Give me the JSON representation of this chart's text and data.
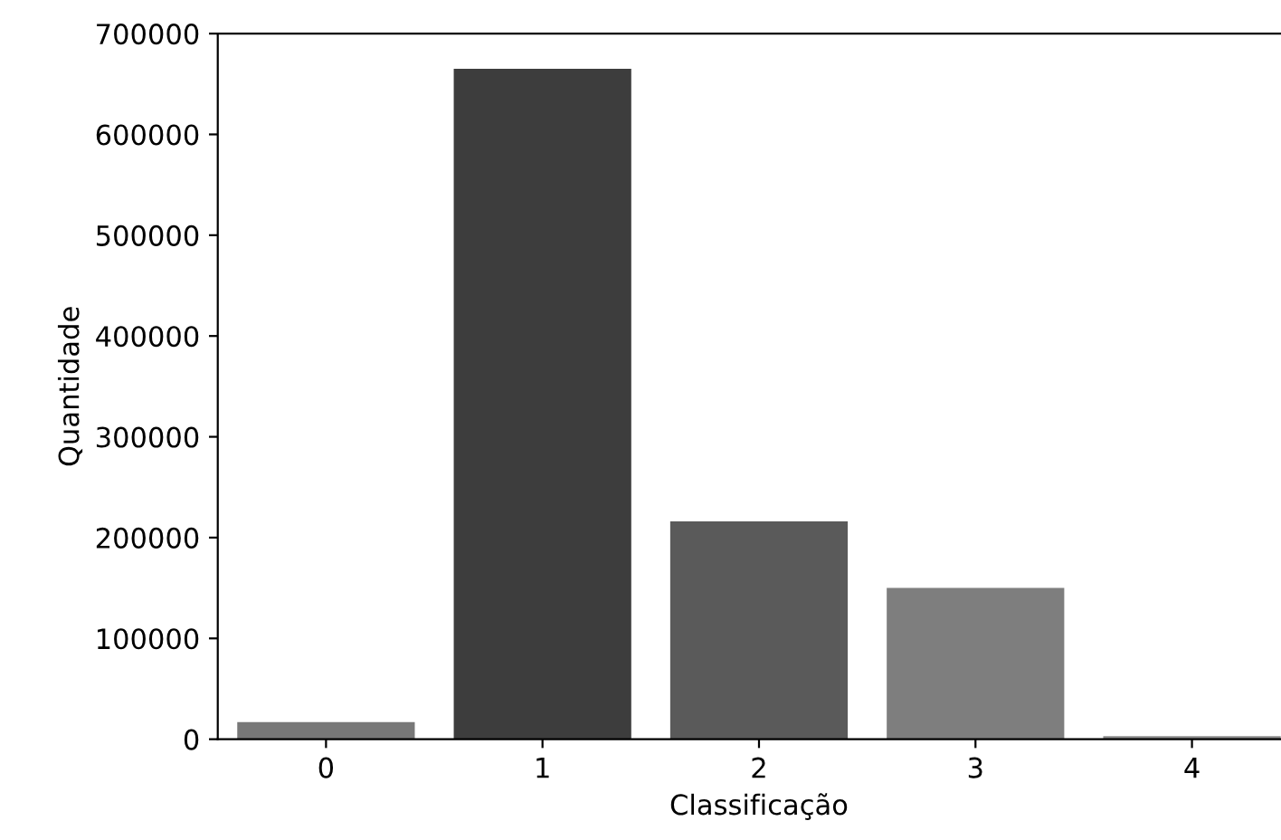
{
  "chart_data": {
    "type": "bar",
    "xlabel": "Classificação",
    "ylabel": "Quantidade",
    "categories": [
      "0",
      "1",
      "2",
      "3",
      "4"
    ],
    "values": [
      17000,
      665000,
      216000,
      150000,
      3000
    ],
    "colors": [
      "#787878",
      "#3d3d3d",
      "#5a5a5a",
      "#7e7e7e",
      "#8c8c8c"
    ],
    "ylim": [
      0,
      700000
    ],
    "yticks": [
      0,
      100000,
      200000,
      300000,
      400000,
      500000,
      600000,
      700000
    ],
    "grid": false
  }
}
